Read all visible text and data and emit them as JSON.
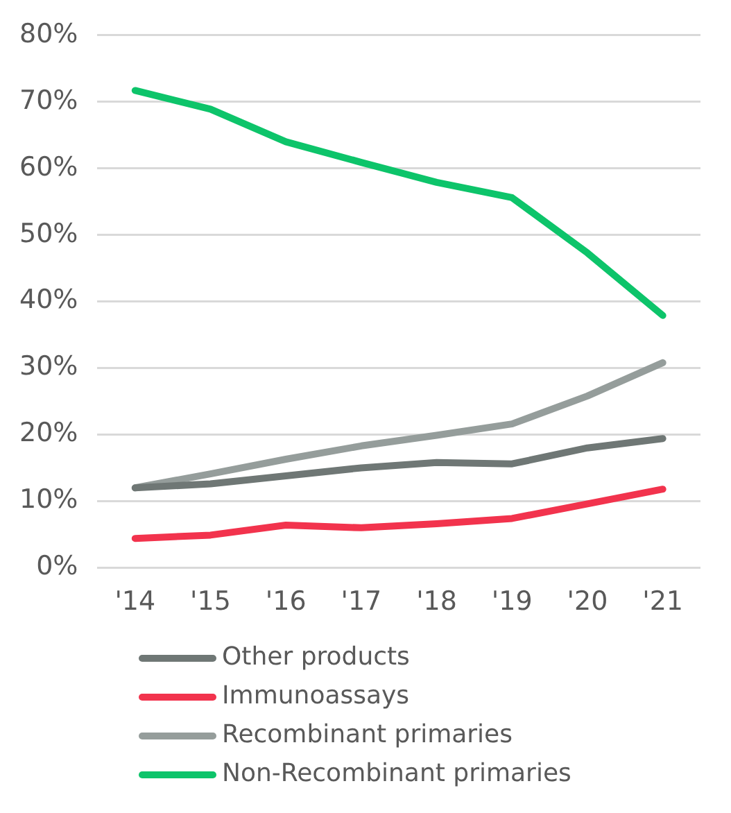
{
  "chart_data": {
    "type": "line",
    "categories": [
      "'14",
      "'15",
      "'16",
      "'17",
      "'18",
      "'19",
      "'20",
      "'21"
    ],
    "series": [
      {
        "name": "Other products",
        "color": "#6f7775",
        "values": [
          12.0,
          12.6,
          13.8,
          15.0,
          15.8,
          15.6,
          18.0,
          19.4
        ]
      },
      {
        "name": "Immunoassays",
        "color": "#f2334d",
        "values": [
          4.4,
          4.9,
          6.4,
          6.0,
          6.6,
          7.4,
          9.6,
          11.8
        ]
      },
      {
        "name": "Recombinant primaries",
        "color": "#959d9b",
        "values": [
          12.0,
          14.1,
          16.3,
          18.3,
          19.9,
          21.6,
          25.8,
          30.8
        ]
      },
      {
        "name": "Non-Recombinant primaries",
        "color": "#0dc46a",
        "values": [
          71.7,
          68.9,
          64.0,
          60.9,
          57.9,
          55.6,
          47.3,
          37.9
        ]
      }
    ],
    "ylim": [
      0,
      80
    ],
    "yticks": [
      {
        "value": 0,
        "label": "0%"
      },
      {
        "value": 10,
        "label": "10%"
      },
      {
        "value": 20,
        "label": "20%"
      },
      {
        "value": 30,
        "label": "30%"
      },
      {
        "value": 40,
        "label": "40%"
      },
      {
        "value": 50,
        "label": "50%"
      },
      {
        "value": 60,
        "label": "60%"
      },
      {
        "value": 70,
        "label": "70%"
      },
      {
        "value": 80,
        "label": "80%"
      }
    ],
    "grid": "y",
    "legend": "bottom",
    "marker": "none",
    "line_style": "solid"
  }
}
